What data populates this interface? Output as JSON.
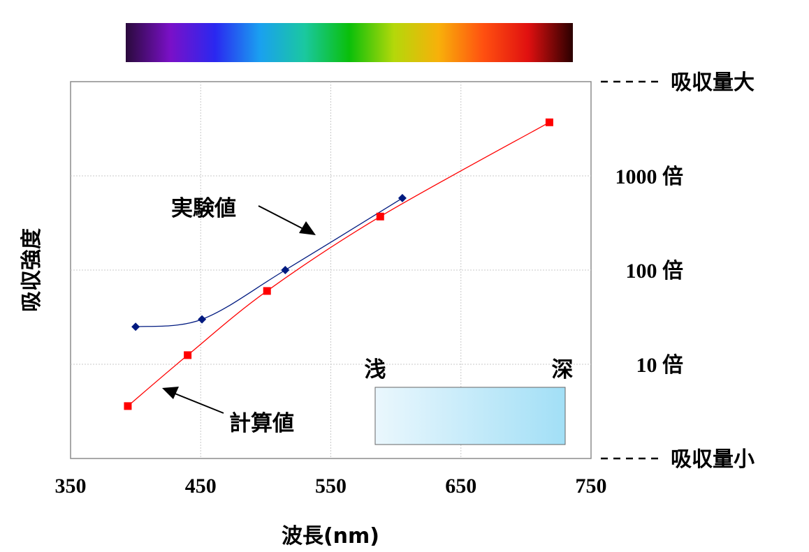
{
  "chart_data": {
    "type": "line",
    "xlabel": "波長(nm)",
    "ylabel": "吸収強度",
    "xlim": [
      350,
      750
    ],
    "x_ticks": [
      "350",
      "450",
      "550",
      "650",
      "750"
    ],
    "y_scale": "log",
    "ylim": [
      1,
      10000
    ],
    "y_ticks": [
      {
        "value": 10,
        "label": "10 倍"
      },
      {
        "value": 100,
        "label": "100 倍"
      },
      {
        "value": 1000,
        "label": "1000 倍"
      }
    ],
    "top_reference_label": "吸収量大",
    "bottom_reference_label": "吸収量小",
    "grid": true,
    "series": [
      {
        "name": "実験値",
        "color": "#001a80",
        "marker": "diamond",
        "points": [
          [
            400,
            25
          ],
          [
            451,
            30
          ],
          [
            515,
            100
          ],
          [
            605,
            580
          ]
        ]
      },
      {
        "name": "計算値",
        "color": "#ff0000",
        "marker": "square",
        "points": [
          [
            394,
            3.6
          ],
          [
            440,
            12.5
          ],
          [
            501,
            60
          ],
          [
            588,
            370
          ],
          [
            718,
            3700
          ]
        ]
      }
    ],
    "color_scale_labels": {
      "light": "浅",
      "deep": "深"
    },
    "colors": {
      "spectrum": [
        "#2a0a3c",
        "#7a10c8",
        "#2a28f0",
        "#1aa0f0",
        "#1ac8a0",
        "#0abf0a",
        "#b4d80a",
        "#f8b00a",
        "#ff5010",
        "#e01010",
        "#2a0000"
      ],
      "depth_gradient": [
        "#eaf7fd",
        "#a2dff6"
      ]
    }
  }
}
